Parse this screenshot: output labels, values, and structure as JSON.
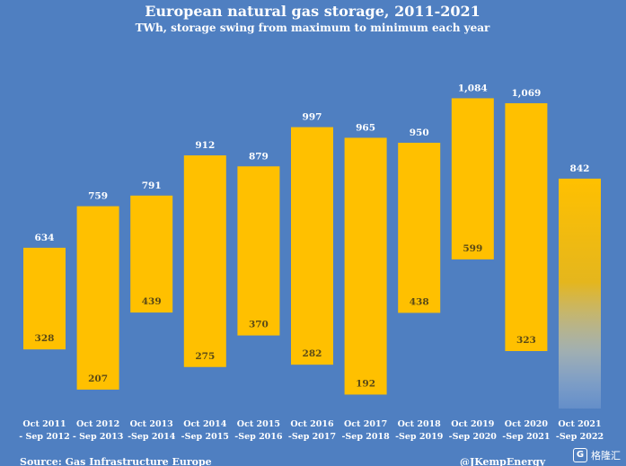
{
  "chart_data": {
    "type": "bar",
    "subtype": "floating-range",
    "title": "European natural gas storage, 2011-2021",
    "subtitle": "TWh, storage swing from maximum to minimum each year",
    "categories": [
      [
        "Oct 2011",
        "- Sep 2012"
      ],
      [
        "Oct 2012",
        "- Sep 2013"
      ],
      [
        "Oct 2013",
        "-Sep 2014"
      ],
      [
        "Oct 2014",
        "-Sep 2015"
      ],
      [
        "Oct 2015",
        "-Sep 2016"
      ],
      [
        "Oct 2016",
        "-Sep 2017"
      ],
      [
        "Oct 2017",
        "-Sep 2018"
      ],
      [
        "Oct 2018",
        "-Sep 2019"
      ],
      [
        "Oct 2019",
        "-Sep 2020"
      ],
      [
        "Oct 2020",
        "-Sep 2021"
      ],
      [
        "Oct 2021",
        "-Sep 2022"
      ]
    ],
    "max_values": [
      634,
      759,
      791,
      912,
      879,
      997,
      965,
      950,
      1084,
      1069,
      842
    ],
    "max_labels": [
      "634",
      "759",
      "791",
      "912",
      "879",
      "997",
      "965",
      "950",
      "1,084",
      "1,069",
      "842"
    ],
    "min_values": [
      328,
      207,
      439,
      275,
      370,
      282,
      192,
      438,
      599,
      323,
      null
    ],
    "min_labels": [
      "328",
      "207",
      "439",
      "275",
      "370",
      "282",
      "192",
      "438",
      "599",
      "323",
      ""
    ],
    "ylim": [
      150,
      1150
    ],
    "colors": {
      "bar": "#ffc000",
      "background": "#4f7fc1",
      "inner_label": "#5b4a16"
    }
  },
  "footer": {
    "source": "Source: Gas Infrastructure Europe",
    "credit": "@JKempEnergy"
  },
  "watermark": {
    "icon": "G",
    "text": "格隆汇"
  }
}
